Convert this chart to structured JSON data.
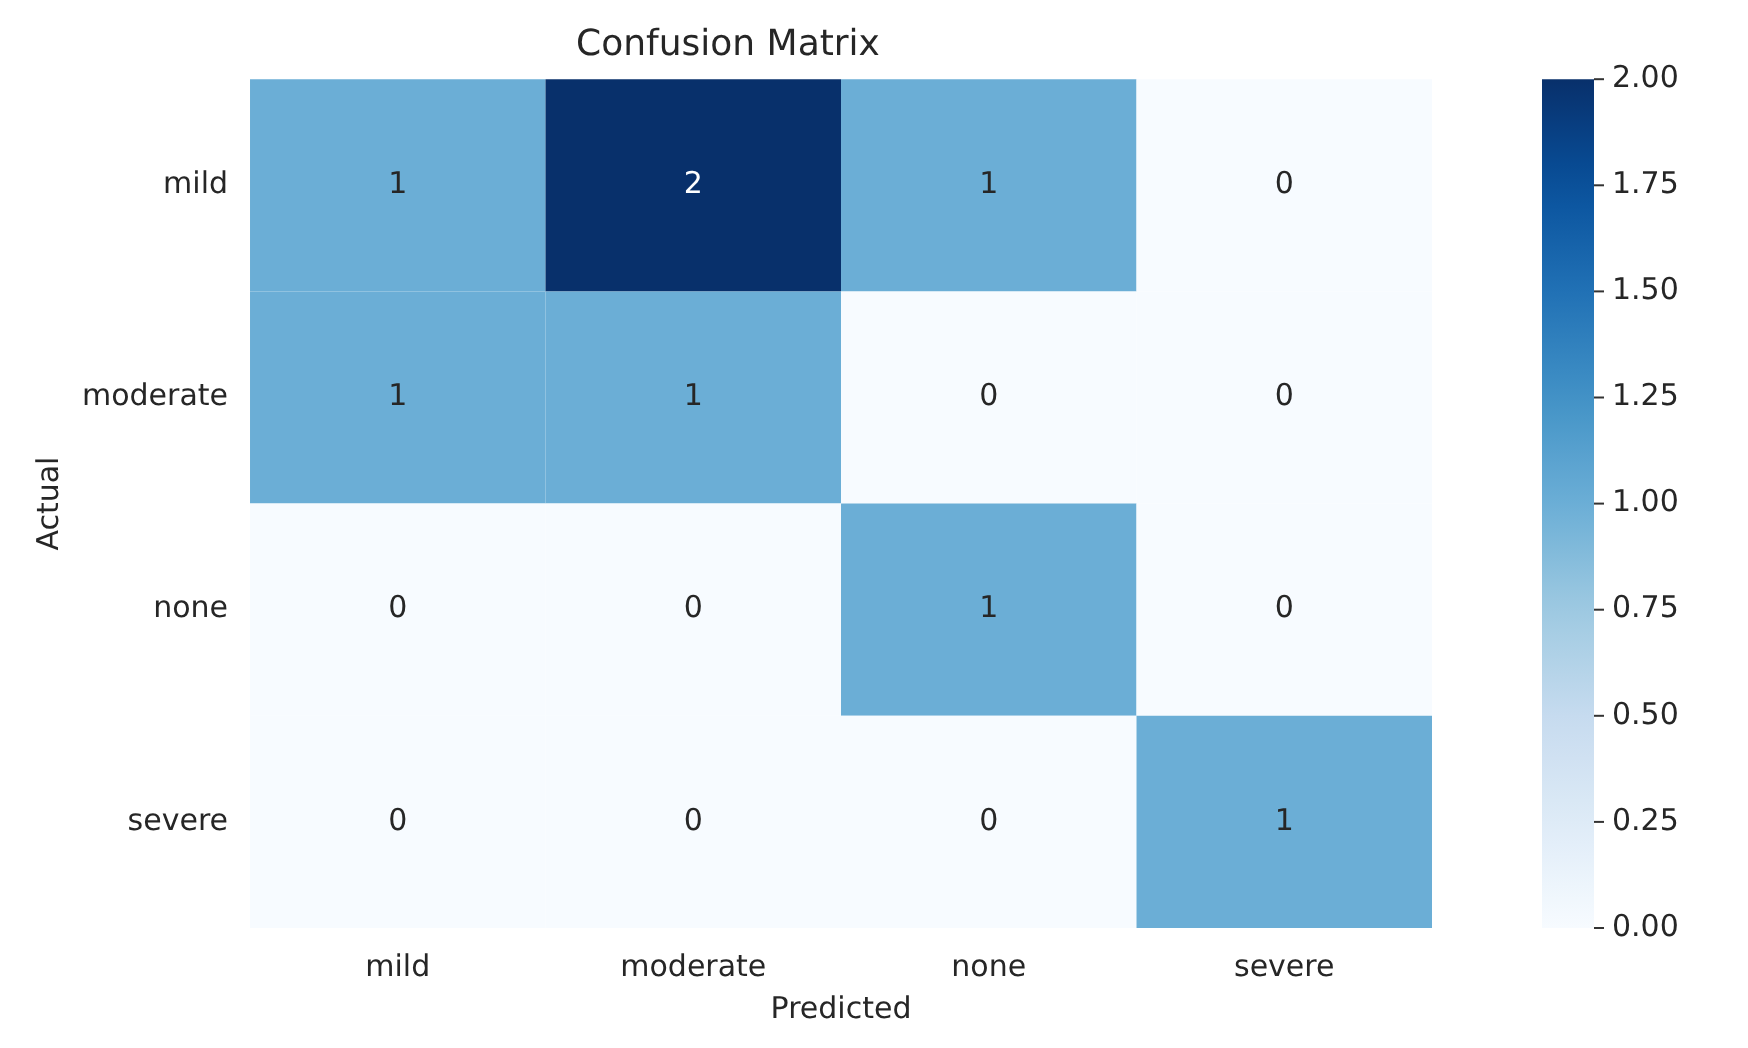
{
  "chart_data": {
    "type": "heatmap",
    "title": "Confusion Matrix",
    "xlabel": "Predicted",
    "ylabel": "Actual",
    "categories": [
      "mild",
      "moderate",
      "none",
      "severe"
    ],
    "y_categories": [
      "mild",
      "moderate",
      "none",
      "severe"
    ],
    "cells": [
      [
        1,
        2,
        1,
        0
      ],
      [
        1,
        1,
        0,
        0
      ],
      [
        0,
        0,
        1,
        0
      ],
      [
        0,
        0,
        0,
        1
      ]
    ],
    "clim": [
      0,
      2
    ],
    "cticks": [
      {
        "value": 0,
        "label": "0.00"
      },
      {
        "value": 0.25,
        "label": "0.25"
      },
      {
        "value": 0.5,
        "label": "0.50"
      },
      {
        "value": 0.75,
        "label": "0.75"
      },
      {
        "value": 1,
        "label": "1.00"
      },
      {
        "value": 1.25,
        "label": "1.25"
      },
      {
        "value": 1.5,
        "label": "1.50"
      },
      {
        "value": 1.75,
        "label": "1.75"
      },
      {
        "value": 2,
        "label": "2.00"
      }
    ],
    "data_labels": true
  }
}
